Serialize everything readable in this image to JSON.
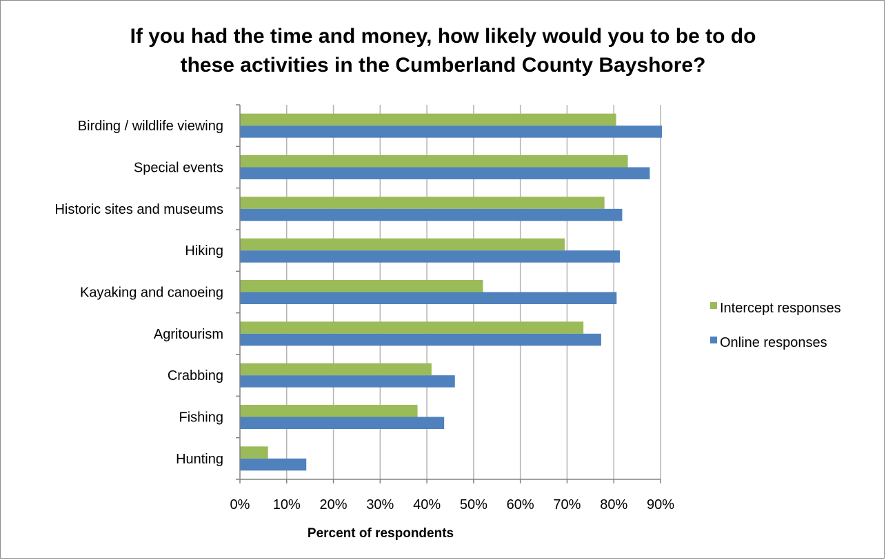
{
  "chart_data": {
    "type": "bar",
    "orientation": "horizontal",
    "title_lines": [
      "If you had the time and money, how likely would you to be to do",
      "these activities in the Cumberland County Bayshore?"
    ],
    "xlabel": "Percent of respondents",
    "ylabel": "",
    "xlim": [
      0,
      90
    ],
    "x_ticks": [
      "0%",
      "10%",
      "20%",
      "30%",
      "40%",
      "50%",
      "60%",
      "70%",
      "80%",
      "90%"
    ],
    "grid": "vertical",
    "legend_position": "right",
    "categories": [
      "Birding / wildlife viewing",
      "Special events",
      "Historic sites and museums",
      "Hiking",
      "Kayaking and canoeing",
      "Agritourism",
      "Crabbing",
      "Fishing",
      "Hunting"
    ],
    "series": [
      {
        "name": "Intercept responses",
        "color": "#9bbb59",
        "values": [
          80.5,
          83,
          78,
          69.5,
          52,
          73.5,
          41,
          38,
          6
        ]
      },
      {
        "name": "Online responses",
        "color": "#4f81bd",
        "values": [
          90.3,
          87.7,
          81.8,
          81.3,
          80.6,
          77.3,
          46,
          43.7,
          14.2
        ]
      }
    ]
  }
}
